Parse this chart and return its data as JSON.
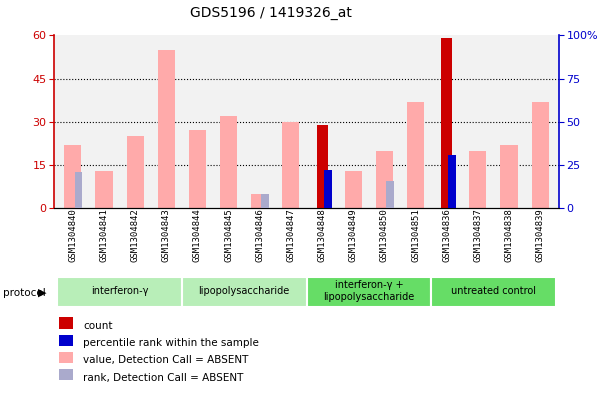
{
  "title": "GDS5196 / 1419326_at",
  "samples": [
    "GSM1304840",
    "GSM1304841",
    "GSM1304842",
    "GSM1304843",
    "GSM1304844",
    "GSM1304845",
    "GSM1304846",
    "GSM1304847",
    "GSM1304848",
    "GSM1304849",
    "GSM1304850",
    "GSM1304851",
    "GSM1304836",
    "GSM1304837",
    "GSM1304838",
    "GSM1304839"
  ],
  "value_absent": [
    22,
    13,
    25,
    55,
    27,
    32,
    5,
    30,
    null,
    13,
    20,
    37,
    null,
    20,
    22,
    37
  ],
  "rank_absent": [
    21,
    null,
    null,
    null,
    null,
    null,
    8,
    null,
    null,
    null,
    16,
    null,
    null,
    null,
    null,
    null
  ],
  "count": [
    null,
    null,
    null,
    null,
    null,
    null,
    null,
    null,
    29,
    null,
    null,
    null,
    59,
    null,
    null,
    null
  ],
  "percentile_rank": [
    null,
    null,
    null,
    null,
    null,
    null,
    null,
    null,
    22,
    null,
    null,
    null,
    31,
    null,
    null,
    null
  ],
  "protocols": [
    {
      "label": "interferon-γ",
      "start": 0,
      "end": 3,
      "color": "#b8eeb8"
    },
    {
      "label": "lipopolysaccharide",
      "start": 4,
      "end": 7,
      "color": "#b8eeb8"
    },
    {
      "label": "interferon-γ +\nlipopolysaccharide",
      "start": 8,
      "end": 11,
      "color": "#66dd66"
    },
    {
      "label": "untreated control",
      "start": 12,
      "end": 15,
      "color": "#66dd66"
    }
  ],
  "left_ylim": [
    0,
    60
  ],
  "right_ylim": [
    0,
    100
  ],
  "left_yticks": [
    0,
    15,
    30,
    45,
    60
  ],
  "right_yticks": [
    0,
    25,
    50,
    75,
    100
  ],
  "color_count": "#cc0000",
  "color_percentile": "#0000cc",
  "color_value_absent": "#ffaaaa",
  "color_rank_absent": "#aaaacc",
  "left_axis_color": "#cc0000",
  "right_axis_color": "#0000cc"
}
